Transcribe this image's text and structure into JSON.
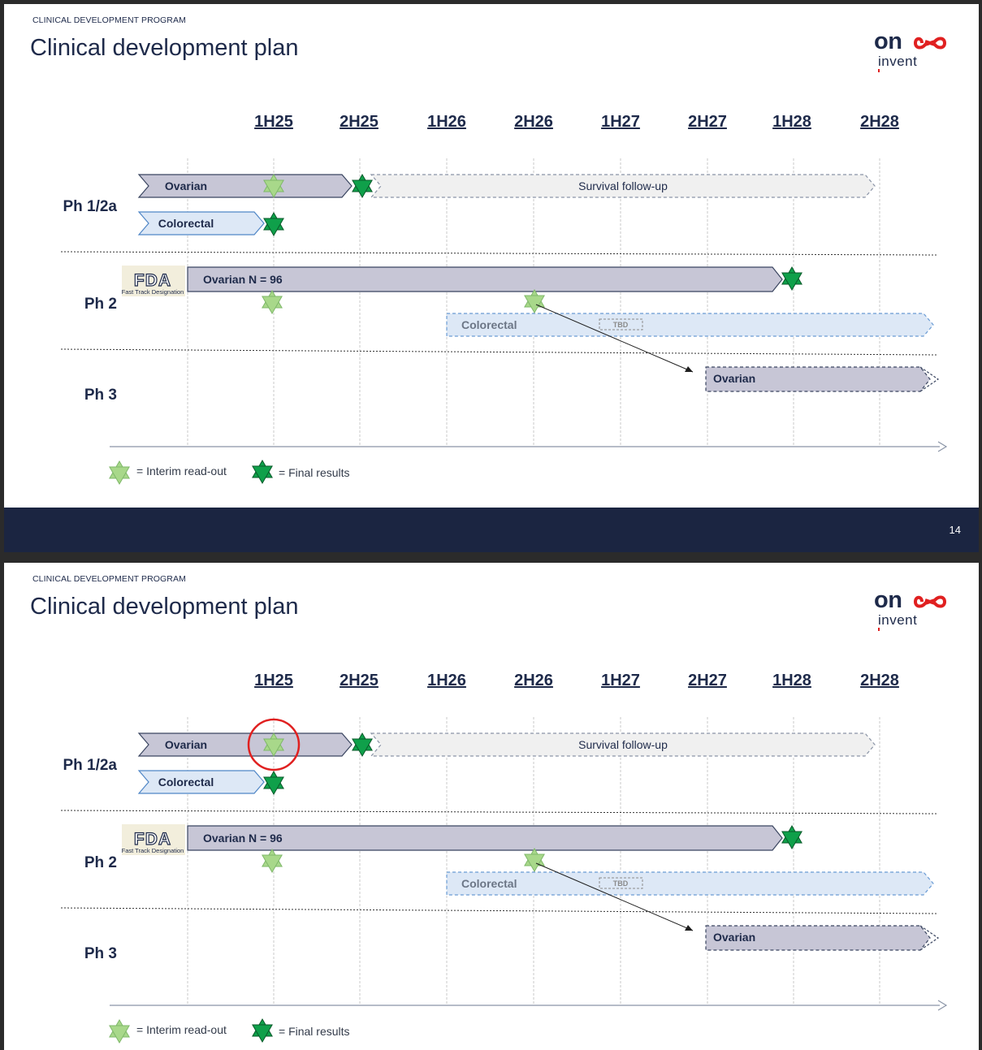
{
  "page": {
    "tag": "CLINICAL DEVELOPMENT PROGRAM",
    "title": "Clinical development plan",
    "page_number": "14"
  },
  "logo": {
    "line1": "onco",
    "line2": "invent"
  },
  "timeline": {
    "periods": [
      "1H25",
      "2H25",
      "1H26",
      "2H26",
      "1H27",
      "2H27",
      "1H28",
      "2H28"
    ],
    "phases": [
      "Ph 1/2a",
      "Ph 2",
      "Ph 3"
    ]
  },
  "bars": {
    "ph1_ovarian": "Ovarian",
    "ph1_survival": "Survival follow-up",
    "ph1_colorectal": "Colorectal",
    "ph2_ovarian": "Ovarian N = 96",
    "ph2_colorectal": "Colorectal",
    "ph2_tbd": "TBD",
    "ph3_ovarian": "Ovarian"
  },
  "fda_badge": {
    "logo": "FDA",
    "caption": "Fast Track Designation"
  },
  "legend": {
    "interim": "= Interim read-out",
    "final": "= Final results"
  },
  "colors": {
    "navy": "#1e2a4a",
    "ovarian_bar": "#c7c6d6",
    "colorectal_bar": "#dde8f6",
    "survival_bar": "#f0f0f0",
    "interim_star": "#a8d88a",
    "final_star": "#0fa04a",
    "highlight_circle": "#e02020"
  },
  "annotation": {
    "highlight": "red circle around the Ph 1/2a Ovarian interim read-out star"
  }
}
